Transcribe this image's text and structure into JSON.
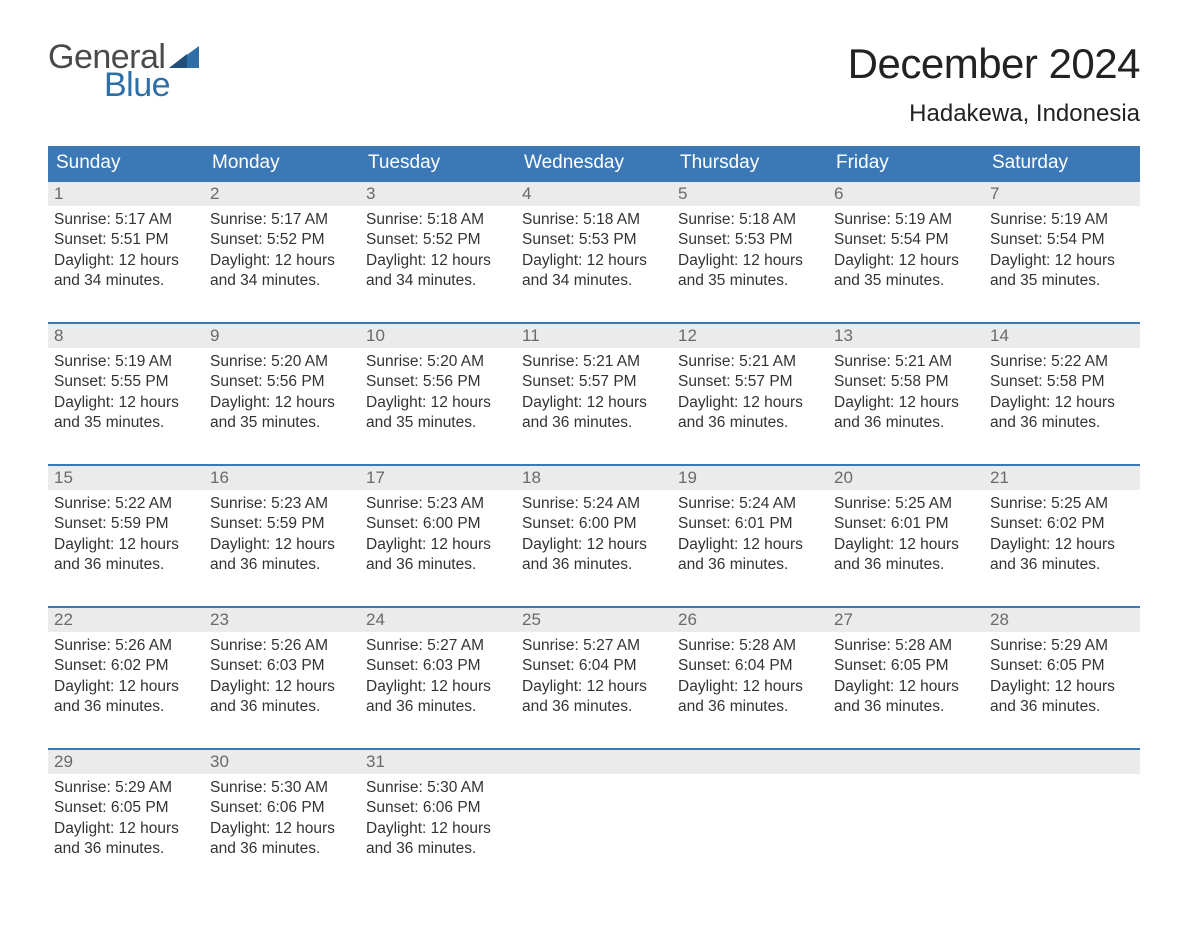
{
  "logo": {
    "word1": "General",
    "word2": "Blue",
    "flag_color": "#2f6fa7"
  },
  "title": "December 2024",
  "location": "Hadakewa, Indonesia",
  "colors": {
    "header_bg": "#3b78b5",
    "header_text": "#ffffff",
    "daynum_bg": "#ebebeb",
    "daynum_text": "#6a6a6a",
    "body_text": "#333333",
    "week_divider": "#3b78b5",
    "page_bg": "#ffffff"
  },
  "typography": {
    "title_fontsize": 42,
    "location_fontsize": 24,
    "weekday_fontsize": 19,
    "daynum_fontsize": 17,
    "body_fontsize": 15.5
  },
  "weekdays": [
    "Sunday",
    "Monday",
    "Tuesday",
    "Wednesday",
    "Thursday",
    "Friday",
    "Saturday"
  ],
  "weeks": [
    [
      {
        "n": "1",
        "sunrise": "Sunrise: 5:17 AM",
        "sunset": "Sunset: 5:51 PM",
        "d1": "Daylight: 12 hours",
        "d2": "and 34 minutes."
      },
      {
        "n": "2",
        "sunrise": "Sunrise: 5:17 AM",
        "sunset": "Sunset: 5:52 PM",
        "d1": "Daylight: 12 hours",
        "d2": "and 34 minutes."
      },
      {
        "n": "3",
        "sunrise": "Sunrise: 5:18 AM",
        "sunset": "Sunset: 5:52 PM",
        "d1": "Daylight: 12 hours",
        "d2": "and 34 minutes."
      },
      {
        "n": "4",
        "sunrise": "Sunrise: 5:18 AM",
        "sunset": "Sunset: 5:53 PM",
        "d1": "Daylight: 12 hours",
        "d2": "and 34 minutes."
      },
      {
        "n": "5",
        "sunrise": "Sunrise: 5:18 AM",
        "sunset": "Sunset: 5:53 PM",
        "d1": "Daylight: 12 hours",
        "d2": "and 35 minutes."
      },
      {
        "n": "6",
        "sunrise": "Sunrise: 5:19 AM",
        "sunset": "Sunset: 5:54 PM",
        "d1": "Daylight: 12 hours",
        "d2": "and 35 minutes."
      },
      {
        "n": "7",
        "sunrise": "Sunrise: 5:19 AM",
        "sunset": "Sunset: 5:54 PM",
        "d1": "Daylight: 12 hours",
        "d2": "and 35 minutes."
      }
    ],
    [
      {
        "n": "8",
        "sunrise": "Sunrise: 5:19 AM",
        "sunset": "Sunset: 5:55 PM",
        "d1": "Daylight: 12 hours",
        "d2": "and 35 minutes."
      },
      {
        "n": "9",
        "sunrise": "Sunrise: 5:20 AM",
        "sunset": "Sunset: 5:56 PM",
        "d1": "Daylight: 12 hours",
        "d2": "and 35 minutes."
      },
      {
        "n": "10",
        "sunrise": "Sunrise: 5:20 AM",
        "sunset": "Sunset: 5:56 PM",
        "d1": "Daylight: 12 hours",
        "d2": "and 35 minutes."
      },
      {
        "n": "11",
        "sunrise": "Sunrise: 5:21 AM",
        "sunset": "Sunset: 5:57 PM",
        "d1": "Daylight: 12 hours",
        "d2": "and 36 minutes."
      },
      {
        "n": "12",
        "sunrise": "Sunrise: 5:21 AM",
        "sunset": "Sunset: 5:57 PM",
        "d1": "Daylight: 12 hours",
        "d2": "and 36 minutes."
      },
      {
        "n": "13",
        "sunrise": "Sunrise: 5:21 AM",
        "sunset": "Sunset: 5:58 PM",
        "d1": "Daylight: 12 hours",
        "d2": "and 36 minutes."
      },
      {
        "n": "14",
        "sunrise": "Sunrise: 5:22 AM",
        "sunset": "Sunset: 5:58 PM",
        "d1": "Daylight: 12 hours",
        "d2": "and 36 minutes."
      }
    ],
    [
      {
        "n": "15",
        "sunrise": "Sunrise: 5:22 AM",
        "sunset": "Sunset: 5:59 PM",
        "d1": "Daylight: 12 hours",
        "d2": "and 36 minutes."
      },
      {
        "n": "16",
        "sunrise": "Sunrise: 5:23 AM",
        "sunset": "Sunset: 5:59 PM",
        "d1": "Daylight: 12 hours",
        "d2": "and 36 minutes."
      },
      {
        "n": "17",
        "sunrise": "Sunrise: 5:23 AM",
        "sunset": "Sunset: 6:00 PM",
        "d1": "Daylight: 12 hours",
        "d2": "and 36 minutes."
      },
      {
        "n": "18",
        "sunrise": "Sunrise: 5:24 AM",
        "sunset": "Sunset: 6:00 PM",
        "d1": "Daylight: 12 hours",
        "d2": "and 36 minutes."
      },
      {
        "n": "19",
        "sunrise": "Sunrise: 5:24 AM",
        "sunset": "Sunset: 6:01 PM",
        "d1": "Daylight: 12 hours",
        "d2": "and 36 minutes."
      },
      {
        "n": "20",
        "sunrise": "Sunrise: 5:25 AM",
        "sunset": "Sunset: 6:01 PM",
        "d1": "Daylight: 12 hours",
        "d2": "and 36 minutes."
      },
      {
        "n": "21",
        "sunrise": "Sunrise: 5:25 AM",
        "sunset": "Sunset: 6:02 PM",
        "d1": "Daylight: 12 hours",
        "d2": "and 36 minutes."
      }
    ],
    [
      {
        "n": "22",
        "sunrise": "Sunrise: 5:26 AM",
        "sunset": "Sunset: 6:02 PM",
        "d1": "Daylight: 12 hours",
        "d2": "and 36 minutes."
      },
      {
        "n": "23",
        "sunrise": "Sunrise: 5:26 AM",
        "sunset": "Sunset: 6:03 PM",
        "d1": "Daylight: 12 hours",
        "d2": "and 36 minutes."
      },
      {
        "n": "24",
        "sunrise": "Sunrise: 5:27 AM",
        "sunset": "Sunset: 6:03 PM",
        "d1": "Daylight: 12 hours",
        "d2": "and 36 minutes."
      },
      {
        "n": "25",
        "sunrise": "Sunrise: 5:27 AM",
        "sunset": "Sunset: 6:04 PM",
        "d1": "Daylight: 12 hours",
        "d2": "and 36 minutes."
      },
      {
        "n": "26",
        "sunrise": "Sunrise: 5:28 AM",
        "sunset": "Sunset: 6:04 PM",
        "d1": "Daylight: 12 hours",
        "d2": "and 36 minutes."
      },
      {
        "n": "27",
        "sunrise": "Sunrise: 5:28 AM",
        "sunset": "Sunset: 6:05 PM",
        "d1": "Daylight: 12 hours",
        "d2": "and 36 minutes."
      },
      {
        "n": "28",
        "sunrise": "Sunrise: 5:29 AM",
        "sunset": "Sunset: 6:05 PM",
        "d1": "Daylight: 12 hours",
        "d2": "and 36 minutes."
      }
    ],
    [
      {
        "n": "29",
        "sunrise": "Sunrise: 5:29 AM",
        "sunset": "Sunset: 6:05 PM",
        "d1": "Daylight: 12 hours",
        "d2": "and 36 minutes."
      },
      {
        "n": "30",
        "sunrise": "Sunrise: 5:30 AM",
        "sunset": "Sunset: 6:06 PM",
        "d1": "Daylight: 12 hours",
        "d2": "and 36 minutes."
      },
      {
        "n": "31",
        "sunrise": "Sunrise: 5:30 AM",
        "sunset": "Sunset: 6:06 PM",
        "d1": "Daylight: 12 hours",
        "d2": "and 36 minutes."
      },
      null,
      null,
      null,
      null
    ]
  ]
}
